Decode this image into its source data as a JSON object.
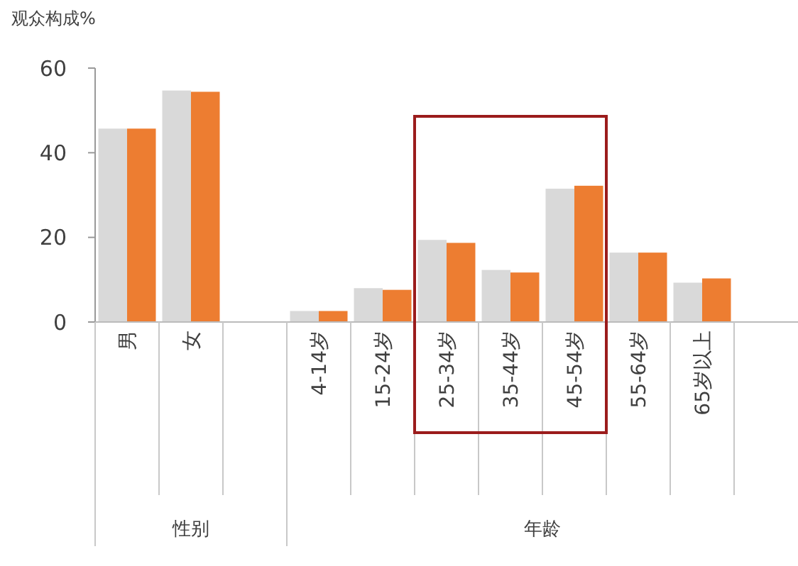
{
  "chart_data": {
    "type": "bar",
    "ylabel": "观众构成%",
    "categories": [
      "男",
      "女",
      null,
      "4-14岁",
      "15-24岁",
      "25-34岁",
      "35-44岁",
      "45-54岁",
      "55-64岁",
      "65岁以上",
      null
    ],
    "series": [
      {
        "color": "#d9d9d9",
        "values": [
          45.7,
          54.7,
          null,
          2.6,
          8.0,
          19.4,
          12.3,
          31.5,
          16.4,
          9.3,
          null
        ]
      },
      {
        "color": "#ed7d31",
        "values": [
          45.7,
          54.4,
          null,
          2.6,
          7.6,
          18.7,
          11.7,
          32.2,
          16.4,
          10.3,
          null
        ]
      }
    ],
    "ylim": [
      0,
      60
    ],
    "yticks": [
      0,
      20,
      40,
      60
    ],
    "annotations": [
      "性别",
      "年龄"
    ]
  }
}
